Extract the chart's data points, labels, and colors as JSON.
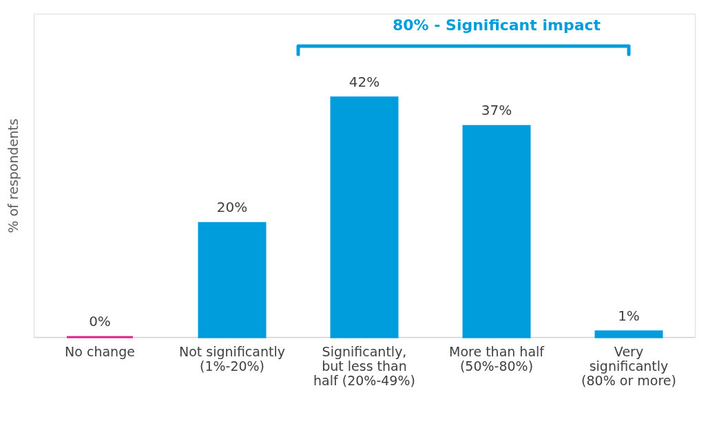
{
  "chart_data": {
    "type": "bar",
    "ylabel": "% of respondents",
    "categories": [
      "No change",
      "Not significantly\n(1%-20%)",
      "Significantly,\nbut less than\nhalf (20%-49%)",
      "More than half\n(50%-80%)",
      "Very\nsignificantly\n(80% or more)"
    ],
    "values": [
      0,
      20,
      42,
      37,
      1
    ],
    "colors": [
      "#e0218a",
      "#009ddc",
      "#009ddc",
      "#009ddc",
      "#009ddc"
    ],
    "value_labels": [
      "0%",
      "20%",
      "42%",
      "37%",
      "1%"
    ],
    "annotations": [
      "80% - Significant impact"
    ],
    "grid": false
  }
}
